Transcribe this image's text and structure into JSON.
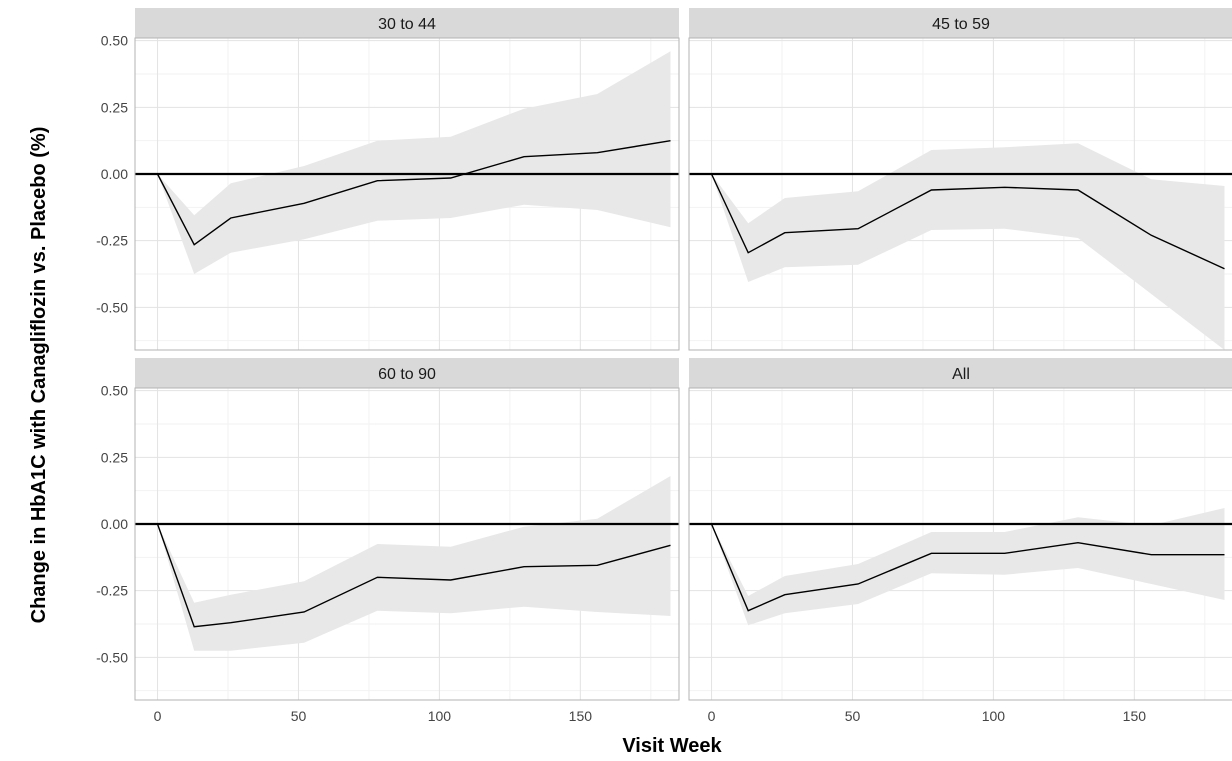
{
  "chart_data": {
    "type": "line",
    "xlabel": "Visit Week",
    "ylabel": "Change in HbA1C with Canagliflozin vs. Placebo (%)",
    "xlim": [
      -8,
      185
    ],
    "ylim": [
      -0.66,
      0.51
    ],
    "x_ticks": [
      0,
      50,
      100,
      150
    ],
    "y_ticks": [
      0.5,
      0.25,
      0.0,
      -0.25,
      -0.5
    ],
    "y_tick_labels": [
      "0.50",
      "0.25",
      "0.00",
      "-0.25",
      "-0.50"
    ],
    "reference_line": 0,
    "grid": true,
    "band": "95% confidence band (grey ribbon)",
    "x": [
      0,
      13,
      26,
      52,
      78,
      104,
      130,
      156,
      182
    ],
    "panels": [
      {
        "title": "30 to 44",
        "values": [
          0.0,
          -0.265,
          -0.165,
          -0.11,
          -0.025,
          -0.015,
          0.065,
          0.08,
          0.125
        ],
        "lower": [
          0.0,
          -0.375,
          -0.295,
          -0.245,
          -0.175,
          -0.165,
          -0.115,
          -0.135,
          -0.2
        ],
        "upper": [
          0.0,
          -0.155,
          -0.035,
          0.03,
          0.125,
          0.14,
          0.245,
          0.3,
          0.46
        ]
      },
      {
        "title": "45 to 59",
        "values": [
          0.0,
          -0.295,
          -0.22,
          -0.205,
          -0.06,
          -0.05,
          -0.06,
          -0.23,
          -0.355
        ],
        "lower": [
          0.0,
          -0.405,
          -0.35,
          -0.34,
          -0.21,
          -0.205,
          -0.24,
          -0.45,
          -0.66
        ],
        "upper": [
          0.0,
          -0.185,
          -0.09,
          -0.065,
          0.09,
          0.1,
          0.115,
          -0.02,
          -0.045
        ]
      },
      {
        "title": "60 to 90",
        "values": [
          0.0,
          -0.385,
          -0.37,
          -0.33,
          -0.2,
          -0.21,
          -0.16,
          -0.155,
          -0.08
        ],
        "lower": [
          0.0,
          -0.475,
          -0.475,
          -0.445,
          -0.325,
          -0.335,
          -0.31,
          -0.33,
          -0.345
        ],
        "upper": [
          0.0,
          -0.295,
          -0.265,
          -0.215,
          -0.075,
          -0.085,
          -0.01,
          0.02,
          0.18
        ]
      },
      {
        "title": "All",
        "values": [
          0.0,
          -0.325,
          -0.265,
          -0.225,
          -0.11,
          -0.11,
          -0.07,
          -0.115,
          -0.115
        ],
        "lower": [
          0.0,
          -0.38,
          -0.335,
          -0.3,
          -0.185,
          -0.19,
          -0.165,
          -0.225,
          -0.285
        ],
        "upper": [
          0.0,
          -0.27,
          -0.195,
          -0.15,
          -0.03,
          -0.03,
          0.025,
          -0.005,
          0.06
        ]
      }
    ]
  }
}
